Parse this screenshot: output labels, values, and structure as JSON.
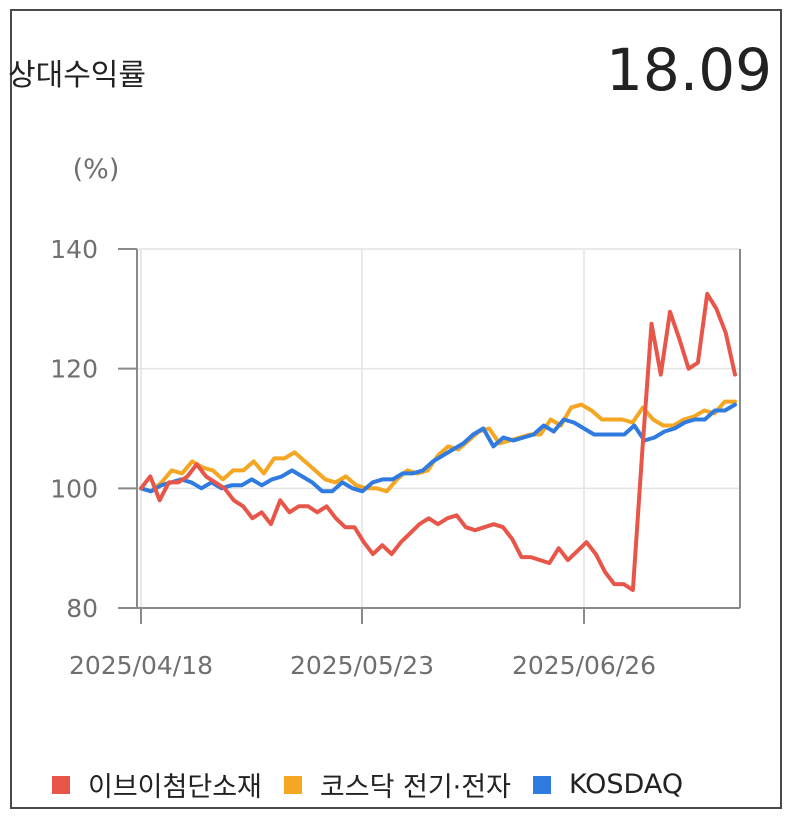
{
  "header": {
    "title": "상대수익률",
    "value": "18.09"
  },
  "chart_data": {
    "type": "line",
    "ylabel": "(%)",
    "ylim": [
      80,
      140
    ],
    "yticks": [
      80,
      100,
      120,
      140
    ],
    "xtick_labels": [
      "2025/04/18",
      "2025/05/23",
      "2025/06/26"
    ],
    "grid": true,
    "legend_position": "bottom",
    "series": [
      {
        "name": "이브이첨단소재",
        "color": "#e8564a",
        "values": [
          100,
          102,
          98,
          101,
          101,
          102,
          104,
          102,
          101,
          100,
          98,
          97,
          95,
          96,
          94,
          98,
          96,
          97,
          97,
          96,
          97,
          95,
          93.5,
          93.5,
          91,
          89,
          90.5,
          89,
          91,
          92.5,
          94,
          95,
          94,
          95,
          95.5,
          93.5,
          93,
          93.5,
          94,
          93.5,
          91.5,
          88.5,
          88.5,
          88,
          87.5,
          90,
          88,
          89.5,
          91,
          89,
          86,
          84,
          84,
          83,
          106,
          127.5,
          119,
          129.5,
          125,
          120,
          121,
          132.5,
          130,
          126,
          119
        ]
      },
      {
        "name": "코스닥 전기·전자",
        "color": "#f5a623",
        "values": [
          100,
          99.5,
          101,
          103,
          102.5,
          104.5,
          103.5,
          103,
          101.5,
          103,
          103,
          104.5,
          102.5,
          105,
          105,
          106,
          104.5,
          103,
          101.5,
          101,
          102,
          100.5,
          100,
          100,
          99.5,
          101.5,
          103,
          102.5,
          103,
          105.5,
          107,
          106.5,
          108,
          109.5,
          110,
          107.5,
          108,
          108.5,
          109,
          109,
          111.5,
          110.5,
          113.5,
          114,
          113,
          111.5,
          111.5,
          111.5,
          111,
          113.5,
          111.5,
          110.5,
          110.5,
          111.5,
          112,
          113,
          112.5,
          114.5,
          114.5
        ]
      },
      {
        "name": "KOSDAQ",
        "color": "#2f7be0",
        "values": [
          100,
          99.5,
          100.5,
          101,
          101.5,
          101,
          100,
          101,
          100,
          100.5,
          100.5,
          101.5,
          100.5,
          101.5,
          102,
          103,
          102,
          101,
          99.5,
          99.5,
          101,
          100,
          99.5,
          101,
          101.5,
          101.5,
          102.5,
          102.5,
          103,
          104.5,
          105.5,
          106.5,
          107.5,
          109,
          110,
          107,
          108.5,
          108,
          108.5,
          109,
          110.5,
          109.5,
          111.5,
          111,
          110,
          109,
          109,
          109,
          109,
          110.5,
          108,
          108.5,
          109.5,
          110,
          111,
          111.5,
          111.5,
          113,
          113,
          114
        ]
      }
    ]
  }
}
